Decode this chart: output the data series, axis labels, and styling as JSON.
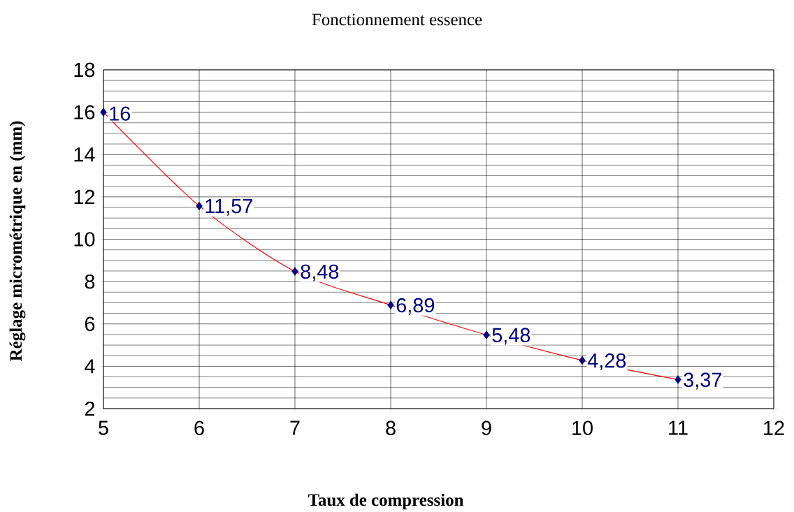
{
  "chart_data": {
    "type": "line",
    "title": "Fonctionnement essence",
    "xlabel": "Taux de compression",
    "ylabel": "Réglage micrométrique en (mm)",
    "x": [
      5,
      6,
      7,
      8,
      9,
      10,
      11
    ],
    "series": [
      {
        "color": "#ff0000",
        "colors": [
          "#000080",
          "#000080",
          "#000080",
          "#000080",
          "#000080",
          "#000080",
          "#000080"
        ],
        "values": [
          16,
          11.57,
          8.48,
          6.89,
          5.48,
          4.28,
          3.37
        ],
        "value_labels": [
          "16",
          "11,57",
          "8,48",
          "6,89",
          "5,48",
          "4,28",
          "3,37"
        ]
      }
    ],
    "xlim": [
      5,
      12
    ],
    "xticks": [
      5,
      6,
      7,
      8,
      9,
      10,
      11,
      12
    ],
    "ylim": [
      2,
      18
    ],
    "yticks": [
      2,
      4,
      6,
      8,
      10,
      12,
      14,
      16,
      18
    ],
    "grid": true,
    "marker": "diamond",
    "line_style": "solid"
  }
}
